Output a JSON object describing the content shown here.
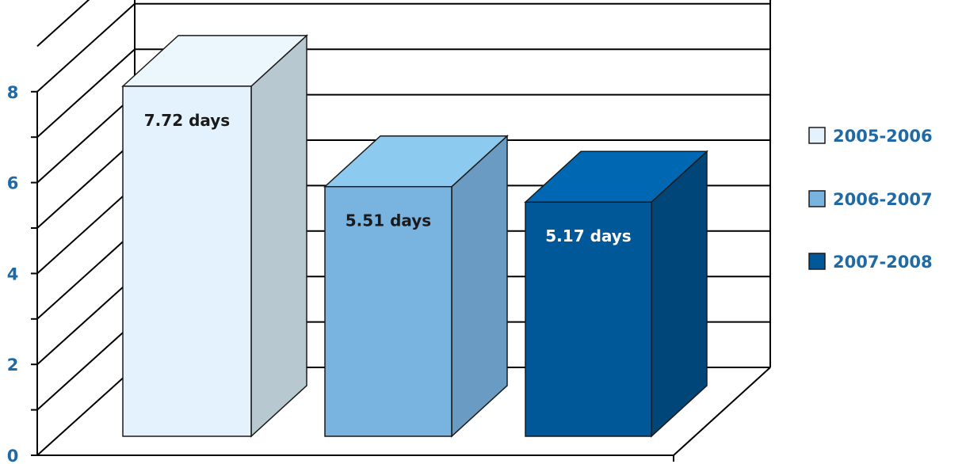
{
  "chart_data": {
    "type": "bar",
    "categories": [
      "2005-2006",
      "2006-2007",
      "2007-2008"
    ],
    "values": [
      7.72,
      5.51,
      5.17
    ],
    "data_labels": [
      "7.72 days",
      "5.51 days",
      "5.17 days"
    ],
    "yticks": [
      "0",
      "2",
      "4",
      "6",
      "8"
    ],
    "ylim": [
      0,
      9
    ],
    "grid": true,
    "three_d": true,
    "legend": {
      "position": "right",
      "entries": [
        "2005-2006",
        "2006-2007",
        "2007-2008"
      ]
    },
    "colors": {
      "bar_front": [
        "#e3f2fc",
        "#79b4e1",
        "#005899"
      ],
      "bar_side": [
        "#b8c8d0",
        "#6a9cc3",
        "#004678"
      ],
      "bar_top": [
        "#ecf6fd",
        "#8dcaef",
        "#0068b3"
      ],
      "label_text": [
        "#1a1a1a",
        "#1a1a1a",
        "#ffffff"
      ],
      "tick_text": "#1f6aa5",
      "legend_text": "#1f6aa5"
    }
  }
}
